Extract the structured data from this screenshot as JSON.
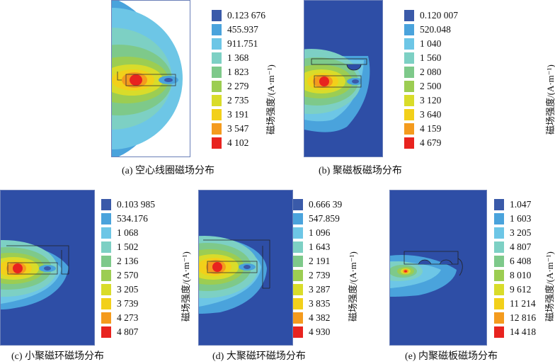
{
  "colors": {
    "background_field": "#2e4ea6",
    "scale": [
      "#3a5aa9",
      "#4aa3dc",
      "#6dc6e6",
      "#7dd0c4",
      "#7ec98a",
      "#9ccd52",
      "#d9dc2a",
      "#f2d01a",
      "#f49b1e",
      "#e8231f"
    ]
  },
  "ylabel_text": "磁场强度/(A·m⁻¹)",
  "panels": [
    {
      "caption": "(a)  空心线圈磁场分布",
      "legend": [
        "0.123 676",
        "455.937",
        "911.751",
        "1 368",
        "1 823",
        "2 279",
        "2 735",
        "3 191",
        "3 547",
        "4 102"
      ]
    },
    {
      "caption": "(b)  聚磁板磁场分布",
      "legend": [
        "0.120 007",
        "520.048",
        "1 040",
        "1 560",
        "2 080",
        "2 500",
        "3 120",
        "3 640",
        "4 159",
        "4 679"
      ]
    },
    {
      "caption": "(c)  小聚磁环磁场分布",
      "legend": [
        "0.103 985",
        "534.176",
        "1 068",
        "1 502",
        "2 136",
        "2 570",
        "3 205",
        "3 739",
        "4 273",
        "4 807"
      ]
    },
    {
      "caption": "(d)  大聚磁环磁场分布",
      "legend": [
        "0.666 39",
        "547.859",
        "1 096",
        "1 643",
        "2 191",
        "2 739",
        "3 287",
        "3 835",
        "4 382",
        "4 930"
      ]
    },
    {
      "caption": "(e)  内聚磁板磁场分布",
      "legend": [
        "1.047",
        "1 603",
        "3 205",
        "4 807",
        "6 408",
        "8 010",
        "9 612",
        "11 214",
        "12 816",
        "14 418"
      ]
    }
  ]
}
